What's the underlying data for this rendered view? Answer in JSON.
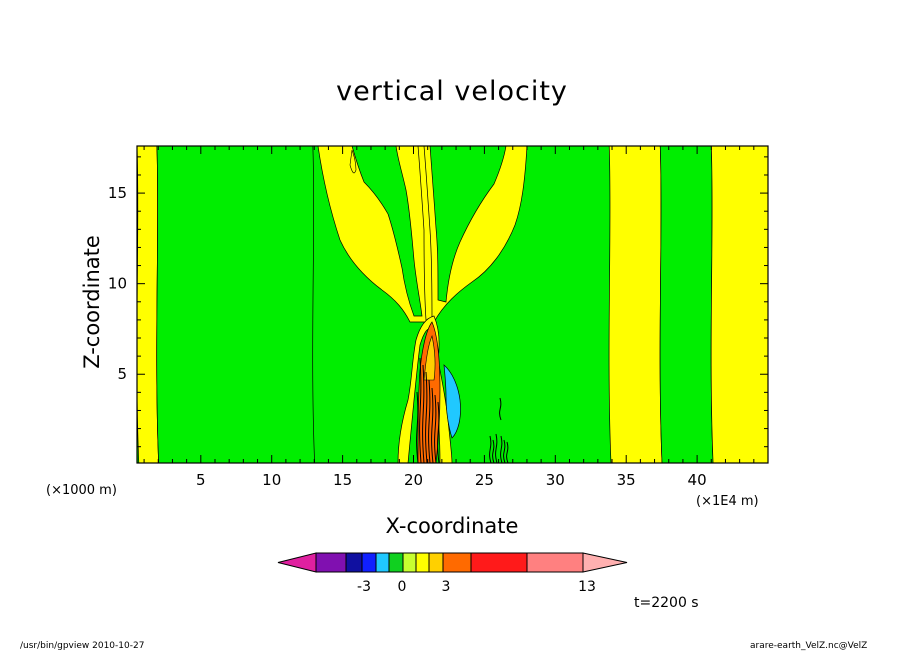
{
  "figure": {
    "title": "vertical velocity",
    "xlabel": "X-coordinate",
    "ylabel": "Z-coordinate",
    "x_unit_left": "(×1000 m)",
    "x_unit_right": "(×1E4 m)",
    "time_label": "t=2200 s",
    "footer_left": "/usr/bin/gpview   2010-10-27",
    "footer_right": "arare-earth_VelZ.nc@VelZ"
  },
  "chart_data": {
    "type": "heatmap",
    "title": "vertical velocity",
    "xlabel": "X-coordinate",
    "ylabel": "Z-coordinate",
    "xlim": [
      0.5,
      45
    ],
    "ylim": [
      0.1,
      17.6
    ],
    "x_ticks": [
      5,
      10,
      15,
      20,
      25,
      30,
      35,
      40
    ],
    "y_ticks": [
      5,
      10,
      15
    ],
    "grid": false,
    "colorbar": {
      "colors": [
        "#e020a0",
        "#8010b0",
        "#1010a0",
        "#1020ff",
        "#20c8ff",
        "#10d020",
        "#c8ff30",
        "#ffff00",
        "#ffd000",
        "#ff6a00",
        "#ff1a1a",
        "#ff8080",
        "#ffb0b0"
      ],
      "tick_labels": [
        "-3",
        "0",
        "3",
        "13"
      ],
      "tick_levels": [
        -3,
        0,
        3,
        13
      ]
    },
    "bands": [
      {
        "x0": 0.5,
        "x1": 1.9,
        "level": "yellow"
      },
      {
        "x0": 1.9,
        "x1": 12.9,
        "level": "green"
      },
      {
        "x0": 33.8,
        "x1": 37.4,
        "level": "yellow"
      },
      {
        "x0": 37.4,
        "x1": 41.0,
        "level": "green"
      },
      {
        "x0": 41.0,
        "x1": 45.0,
        "level": "yellow"
      }
    ]
  }
}
